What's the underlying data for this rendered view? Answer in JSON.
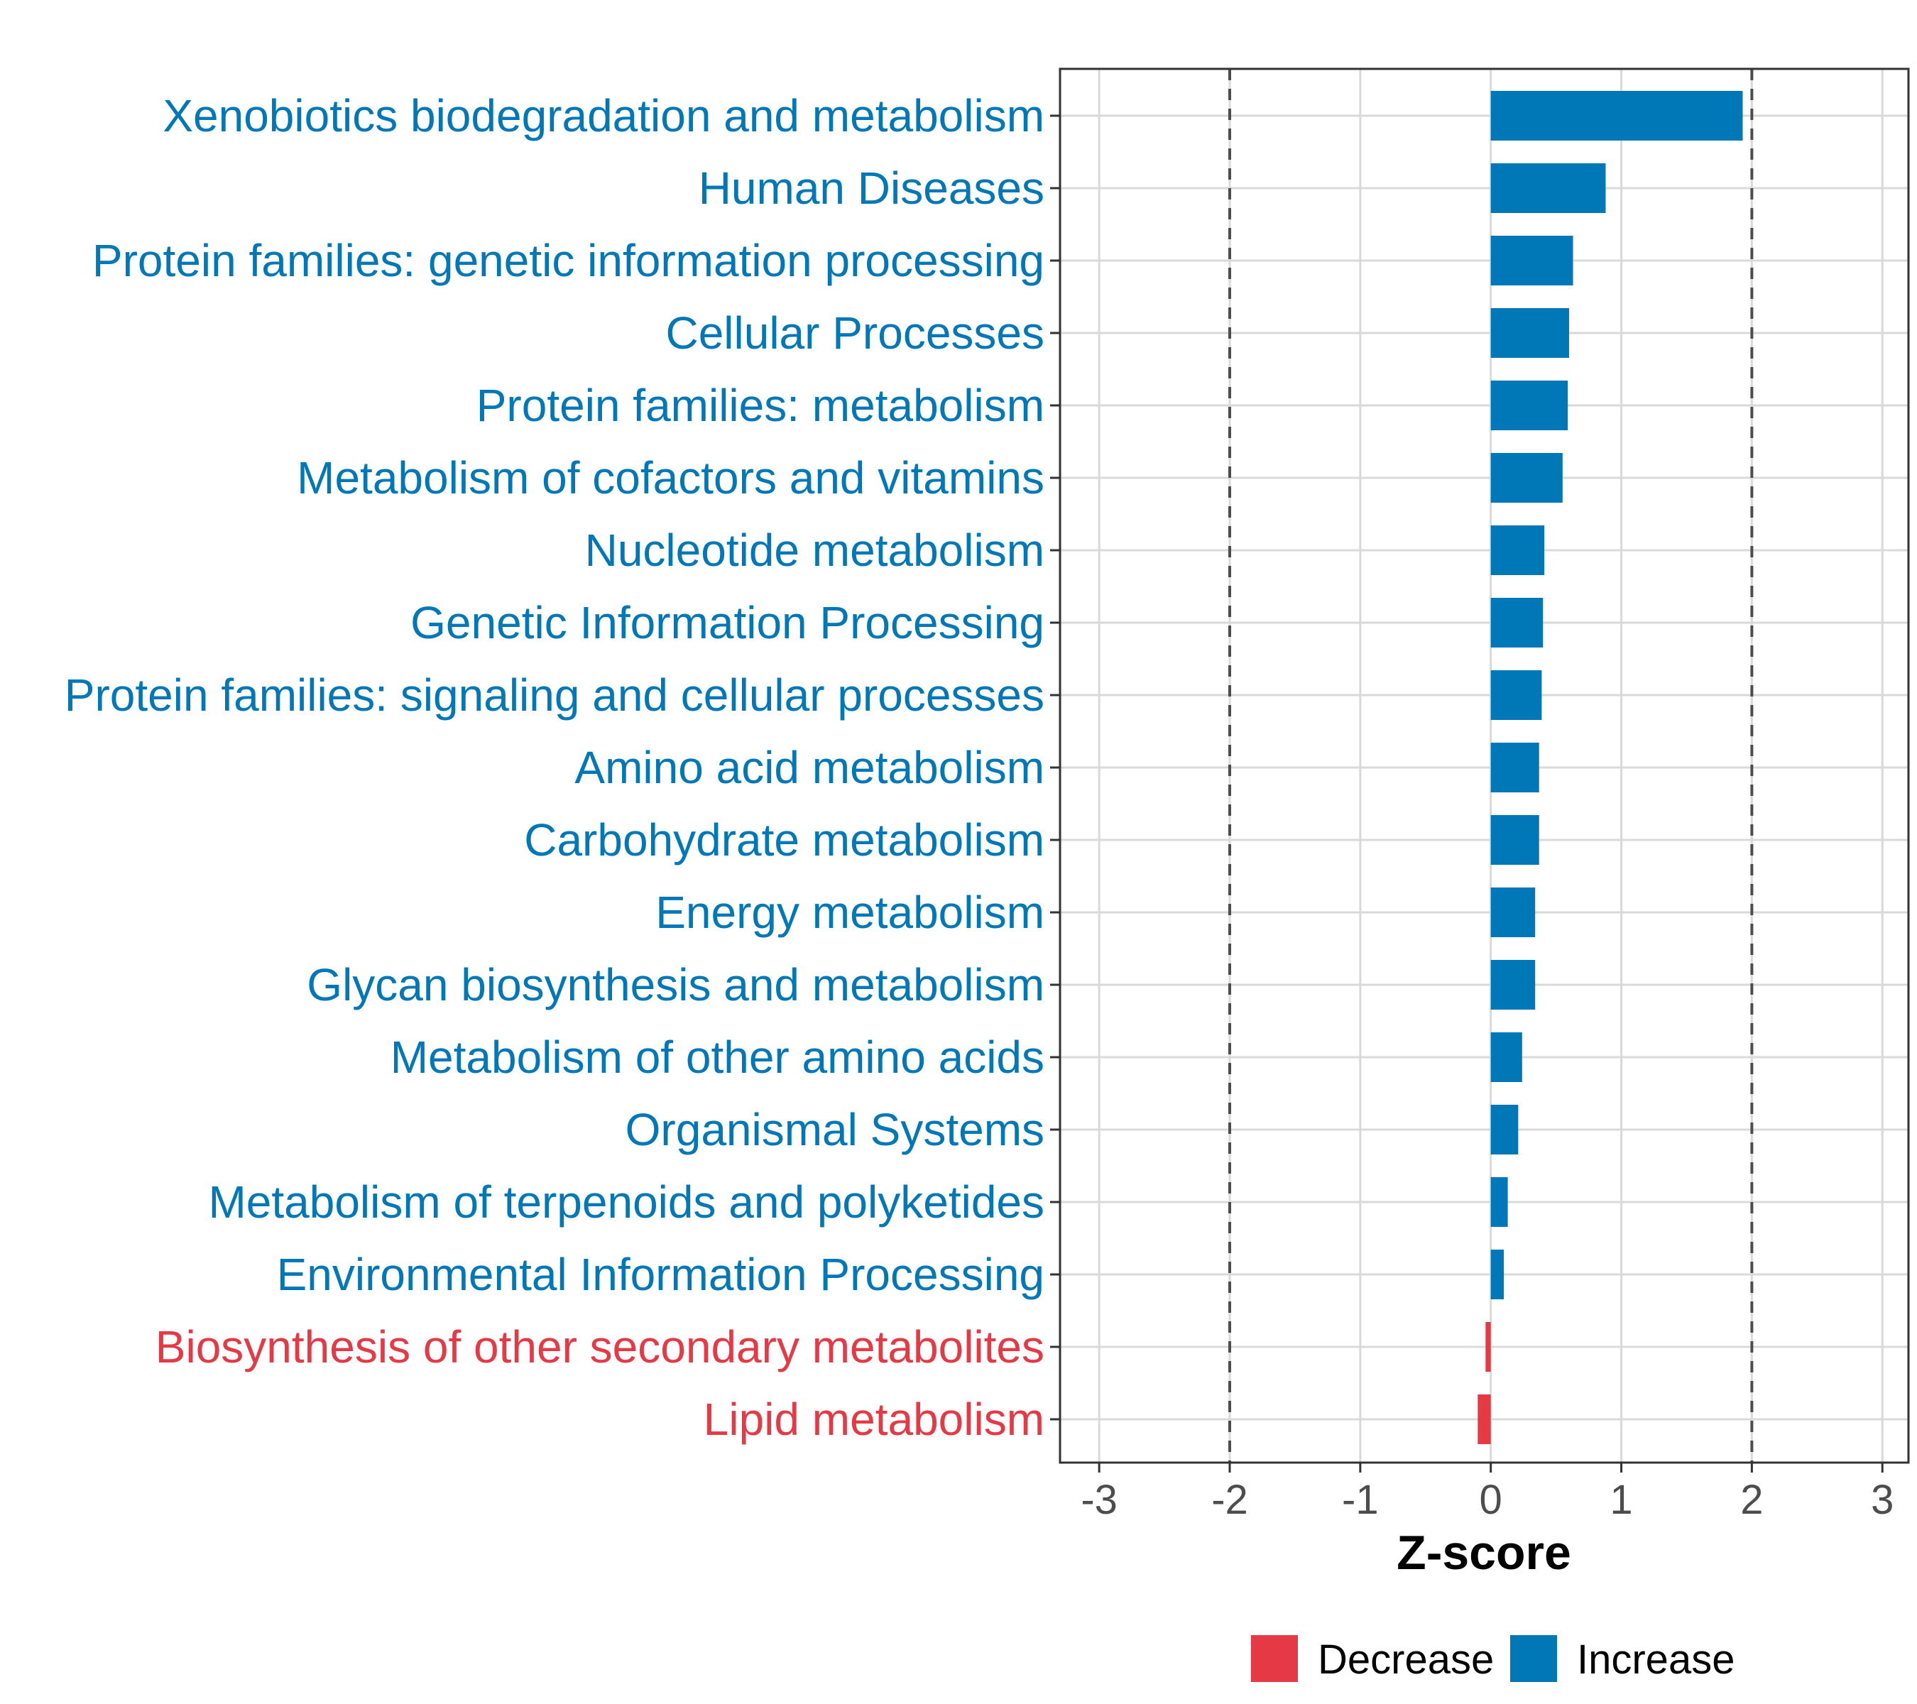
{
  "chart_data": {
    "type": "bar",
    "orientation": "horizontal",
    "title": "",
    "xlabel": "Z-score",
    "ylabel": "",
    "xlim": [
      -3.3,
      3.2
    ],
    "xticks": [
      -3,
      -2,
      -1,
      0,
      1,
      2,
      3
    ],
    "xtick_labels": [
      "-3",
      "-2",
      "-1",
      "0",
      "1",
      "2",
      "3"
    ],
    "reference_lines": [
      -2,
      2
    ],
    "grid": true,
    "legend_position": "bottom",
    "legend": [
      {
        "label": "Decrease",
        "color": "#e63946"
      },
      {
        "label": "Increase",
        "color": "#0077b6"
      }
    ],
    "categories": [
      {
        "label": "Xenobiotics biodegradation and metabolism",
        "value": 1.93,
        "group": "Increase"
      },
      {
        "label": "Human Diseases",
        "value": 0.88,
        "group": "Increase"
      },
      {
        "label": "Protein families: genetic information processing",
        "value": 0.63,
        "group": "Increase"
      },
      {
        "label": "Cellular Processes",
        "value": 0.6,
        "group": "Increase"
      },
      {
        "label": "Protein families: metabolism",
        "value": 0.59,
        "group": "Increase"
      },
      {
        "label": "Metabolism of cofactors and vitamins",
        "value": 0.55,
        "group": "Increase"
      },
      {
        "label": "Nucleotide metabolism",
        "value": 0.41,
        "group": "Increase"
      },
      {
        "label": "Genetic Information Processing",
        "value": 0.4,
        "group": "Increase"
      },
      {
        "label": "Protein families: signaling and cellular processes",
        "value": 0.39,
        "group": "Increase"
      },
      {
        "label": "Amino acid metabolism",
        "value": 0.37,
        "group": "Increase"
      },
      {
        "label": "Carbohydrate metabolism",
        "value": 0.37,
        "group": "Increase"
      },
      {
        "label": "Energy metabolism",
        "value": 0.34,
        "group": "Increase"
      },
      {
        "label": "Glycan biosynthesis and metabolism",
        "value": 0.34,
        "group": "Increase"
      },
      {
        "label": "Metabolism of other amino acids",
        "value": 0.24,
        "group": "Increase"
      },
      {
        "label": "Organismal Systems",
        "value": 0.21,
        "group": "Increase"
      },
      {
        "label": "Metabolism of terpenoids and polyketides",
        "value": 0.13,
        "group": "Increase"
      },
      {
        "label": "Environmental Information Processing",
        "value": 0.1,
        "group": "Increase"
      },
      {
        "label": "Biosynthesis of other secondary metabolites",
        "value": -0.04,
        "group": "Decrease"
      },
      {
        "label": "Lipid metabolism",
        "value": -0.1,
        "group": "Decrease"
      }
    ]
  }
}
